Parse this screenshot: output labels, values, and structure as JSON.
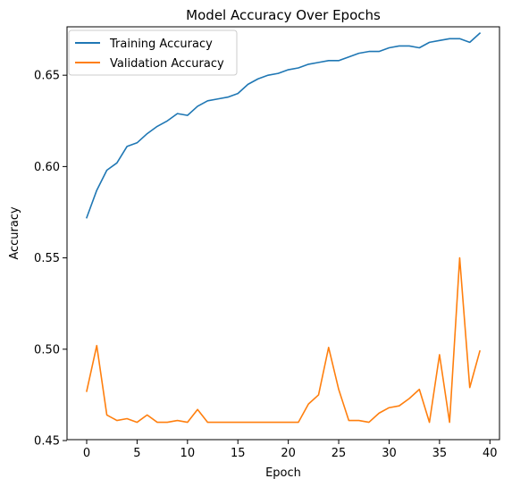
{
  "chart_data": {
    "type": "line",
    "title": "Model Accuracy Over Epochs",
    "xlabel": "Epoch",
    "ylabel": "Accuracy",
    "xlim": [
      -1.95,
      40.95
    ],
    "ylim": [
      0.4505,
      0.6765
    ],
    "xticks": [
      0,
      5,
      10,
      15,
      20,
      25,
      30,
      35,
      40
    ],
    "yticks": [
      0.45,
      0.5,
      0.55,
      0.6,
      0.65
    ],
    "ytick_labels": [
      "0.45",
      "0.50",
      "0.55",
      "0.60",
      "0.65"
    ],
    "grid": false,
    "legend_position": "upper left",
    "x": [
      0,
      1,
      2,
      3,
      4,
      5,
      6,
      7,
      8,
      9,
      10,
      11,
      12,
      13,
      14,
      15,
      16,
      17,
      18,
      19,
      20,
      21,
      22,
      23,
      24,
      25,
      26,
      27,
      28,
      29,
      30,
      31,
      32,
      33,
      34,
      35,
      36,
      37,
      38,
      39
    ],
    "series": [
      {
        "name": "Training Accuracy",
        "color": "#1f77b4",
        "values": [
          0.572,
          0.587,
          0.598,
          0.602,
          0.611,
          0.613,
          0.618,
          0.622,
          0.625,
          0.629,
          0.628,
          0.633,
          0.636,
          0.637,
          0.638,
          0.64,
          0.645,
          0.648,
          0.65,
          0.651,
          0.653,
          0.654,
          0.656,
          0.657,
          0.658,
          0.658,
          0.66,
          0.662,
          0.663,
          0.663,
          0.665,
          0.666,
          0.666,
          0.665,
          0.668,
          0.669,
          0.67,
          0.67,
          0.668,
          0.673
        ]
      },
      {
        "name": "Validation Accuracy",
        "color": "#ff7f0e",
        "values": [
          0.477,
          0.502,
          0.464,
          0.461,
          0.462,
          0.46,
          0.464,
          0.46,
          0.46,
          0.461,
          0.46,
          0.467,
          0.46,
          0.46,
          0.46,
          0.46,
          0.46,
          0.46,
          0.46,
          0.46,
          0.46,
          0.46,
          0.47,
          0.475,
          0.501,
          0.478,
          0.461,
          0.461,
          0.46,
          0.465,
          0.468,
          0.469,
          0.473,
          0.478,
          0.46,
          0.497,
          0.46,
          0.55,
          0.479,
          0.499
        ]
      }
    ]
  }
}
